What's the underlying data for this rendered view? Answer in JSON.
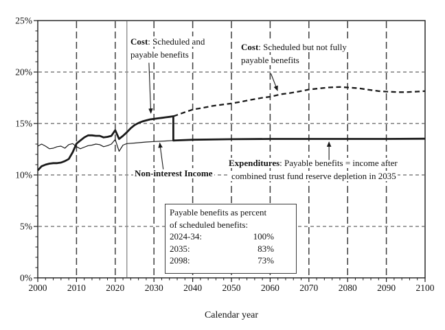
{
  "chart_data": {
    "type": "line",
    "title": "",
    "xlabel": "Calendar year",
    "ylabel": "",
    "xlim": [
      2000,
      2100
    ],
    "ylim": [
      0,
      25
    ],
    "x_tick_labels": [
      "2000",
      "2010",
      "2020",
      "2030",
      "2040",
      "2050",
      "2060",
      "2070",
      "2080",
      "2090",
      "2100"
    ],
    "x_ticks_major": [
      2000,
      2010,
      2020,
      2030,
      2040,
      2050,
      2060,
      2070,
      2080,
      2090,
      2100
    ],
    "y_tick_labels": [
      "0%",
      "5%",
      "10%",
      "15%",
      "20%",
      "25%"
    ],
    "y_ticks_major": [
      0,
      5,
      10,
      15,
      20,
      25
    ],
    "x_minor_step": 2,
    "y_minor_step": 1,
    "grid": true,
    "x_gridline_years": [
      2010,
      2020,
      2030,
      2040,
      2050,
      2060,
      2070,
      2080,
      2090
    ],
    "y_gridline_values": [
      5,
      10,
      15,
      20
    ],
    "projection_divider_year": 2023,
    "series": [
      {
        "id": "cost-payable-line",
        "name": "Cost: Scheduled and payable benefits / Expenditures",
        "style": "thick-solid",
        "points": [
          [
            2000,
            10.45
          ],
          [
            2001,
            10.85
          ],
          [
            2002,
            11.0
          ],
          [
            2003,
            11.1
          ],
          [
            2004,
            11.15
          ],
          [
            2005,
            11.15
          ],
          [
            2006,
            11.2
          ],
          [
            2007,
            11.35
          ],
          [
            2008,
            11.55
          ],
          [
            2009,
            12.2
          ],
          [
            2010,
            13.05
          ],
          [
            2011,
            13.35
          ],
          [
            2012,
            13.65
          ],
          [
            2013,
            13.85
          ],
          [
            2014,
            13.85
          ],
          [
            2015,
            13.8
          ],
          [
            2016,
            13.8
          ],
          [
            2017,
            13.65
          ],
          [
            2018,
            13.7
          ],
          [
            2019,
            13.8
          ],
          [
            2020,
            14.35
          ],
          [
            2021,
            13.5
          ],
          [
            2022,
            13.8
          ],
          [
            2023,
            14.15
          ],
          [
            2024,
            14.55
          ],
          [
            2025,
            14.85
          ],
          [
            2026,
            15.05
          ],
          [
            2027,
            15.2
          ],
          [
            2028,
            15.3
          ],
          [
            2029,
            15.4
          ],
          [
            2030,
            15.45
          ],
          [
            2031,
            15.5
          ],
          [
            2032,
            15.55
          ],
          [
            2033,
            15.6
          ],
          [
            2034,
            15.65
          ],
          [
            2035,
            15.7
          ],
          [
            2035,
            13.35
          ],
          [
            2040,
            13.42
          ],
          [
            2050,
            13.47
          ],
          [
            2060,
            13.5
          ],
          [
            2070,
            13.5
          ],
          [
            2080,
            13.5
          ],
          [
            2090,
            13.5
          ],
          [
            2100,
            13.52
          ]
        ]
      },
      {
        "id": "income-line",
        "name": "Non-interest Income",
        "style": "thin-solid",
        "points": [
          [
            2000,
            12.8
          ],
          [
            2001,
            13.0
          ],
          [
            2002,
            12.8
          ],
          [
            2003,
            12.55
          ],
          [
            2004,
            12.6
          ],
          [
            2005,
            12.75
          ],
          [
            2006,
            12.8
          ],
          [
            2007,
            12.6
          ],
          [
            2008,
            12.95
          ],
          [
            2009,
            13.05
          ],
          [
            2010,
            12.75
          ],
          [
            2011,
            12.55
          ],
          [
            2012,
            12.7
          ],
          [
            2013,
            12.85
          ],
          [
            2014,
            12.9
          ],
          [
            2015,
            13.0
          ],
          [
            2016,
            12.95
          ],
          [
            2017,
            12.75
          ],
          [
            2018,
            12.85
          ],
          [
            2019,
            13.0
          ],
          [
            2020,
            13.45
          ],
          [
            2021,
            12.3
          ],
          [
            2022,
            12.9
          ],
          [
            2023,
            13.05
          ],
          [
            2025,
            13.1
          ],
          [
            2028,
            13.2
          ],
          [
            2030,
            13.25
          ],
          [
            2033,
            13.3
          ],
          [
            2035,
            13.35
          ]
        ]
      },
      {
        "id": "scheduled-cost-line",
        "name": "Cost: Scheduled but not fully payable benefits",
        "style": "thick-dashed",
        "points": [
          [
            2035,
            15.7
          ],
          [
            2038,
            16.1
          ],
          [
            2040,
            16.35
          ],
          [
            2043,
            16.55
          ],
          [
            2045,
            16.7
          ],
          [
            2048,
            16.85
          ],
          [
            2050,
            16.95
          ],
          [
            2053,
            17.15
          ],
          [
            2055,
            17.3
          ],
          [
            2058,
            17.5
          ],
          [
            2060,
            17.6
          ],
          [
            2063,
            17.85
          ],
          [
            2065,
            17.95
          ],
          [
            2068,
            18.15
          ],
          [
            2070,
            18.3
          ],
          [
            2073,
            18.42
          ],
          [
            2075,
            18.5
          ],
          [
            2078,
            18.55
          ],
          [
            2080,
            18.5
          ],
          [
            2083,
            18.42
          ],
          [
            2085,
            18.3
          ],
          [
            2088,
            18.15
          ],
          [
            2090,
            18.1
          ],
          [
            2093,
            18.05
          ],
          [
            2095,
            18.05
          ],
          [
            2098,
            18.1
          ],
          [
            2100,
            18.15
          ]
        ]
      }
    ],
    "arrows": [
      {
        "for": "cost-payable",
        "from": [
          2028.7,
          20.9
        ],
        "to": [
          2029.2,
          16.0
        ]
      },
      {
        "for": "cost-not-fully-payable",
        "from": [
          2060.2,
          19.85
        ],
        "to": [
          2061.9,
          18.2
        ]
      },
      {
        "for": "non-interest-income",
        "from": [
          2032.4,
          10.55
        ],
        "to": [
          2031.5,
          13.1
        ]
      },
      {
        "for": "expenditures",
        "from": [
          2075.2,
          11.45
        ],
        "to": [
          2075.2,
          13.2
        ]
      }
    ]
  },
  "annotations": {
    "cost_payable": {
      "bold": "Cost",
      "line1_rest": ": Scheduled and",
      "line2": "payable benefits"
    },
    "cost_not_fully_payable": {
      "bold": "Cost",
      "line1_rest": ": Scheduled but not fully",
      "line2": "payable benefits"
    },
    "non_interest_income": {
      "label": "Non-interest Income"
    },
    "expenditures": {
      "bold": "Expenditures",
      "line1_rest": ": Payable benefits = income after",
      "line2": "combined trust fund reserve depletion in 2035"
    }
  },
  "payable_box": {
    "header_line1": "Payable benefits as percent",
    "header_line2": "of scheduled benefits:",
    "rows": [
      {
        "label": "2024-34:",
        "value": "100%"
      },
      {
        "label": "2035:",
        "value": "83%"
      },
      {
        "label": "2098:",
        "value": "73%"
      }
    ]
  },
  "colors": {
    "line": "#1a1a1a",
    "grid": "#3d3d3d",
    "divider": "#8f8f8f",
    "background": "#ffffff",
    "text": "#111111"
  }
}
